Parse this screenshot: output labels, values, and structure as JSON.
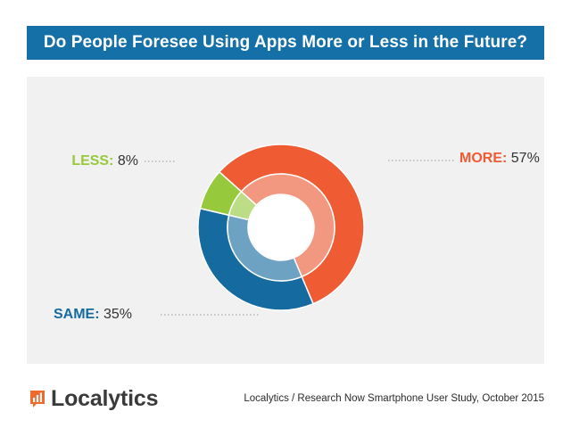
{
  "header": {
    "title": "Do People Foresee Using Apps More or Less in the Future?"
  },
  "chart_data": {
    "type": "pie",
    "variant": "donut",
    "title": "Do People Foresee Using Apps More or Less in the Future?",
    "slices": [
      {
        "label": "MORE:",
        "value": 57,
        "display": "57%",
        "color": "#ef5b33"
      },
      {
        "label": "SAME:",
        "value": 35,
        "display": "35%",
        "color": "#156aa0"
      },
      {
        "label": "LESS:",
        "value": 8,
        "display": "8%",
        "color": "#97c93d"
      }
    ]
  },
  "footer": {
    "brand": "Localytics",
    "brand_color": "#ef6a2e",
    "source": "Localytics / Research Now Smartphone User Study, October 2015"
  }
}
